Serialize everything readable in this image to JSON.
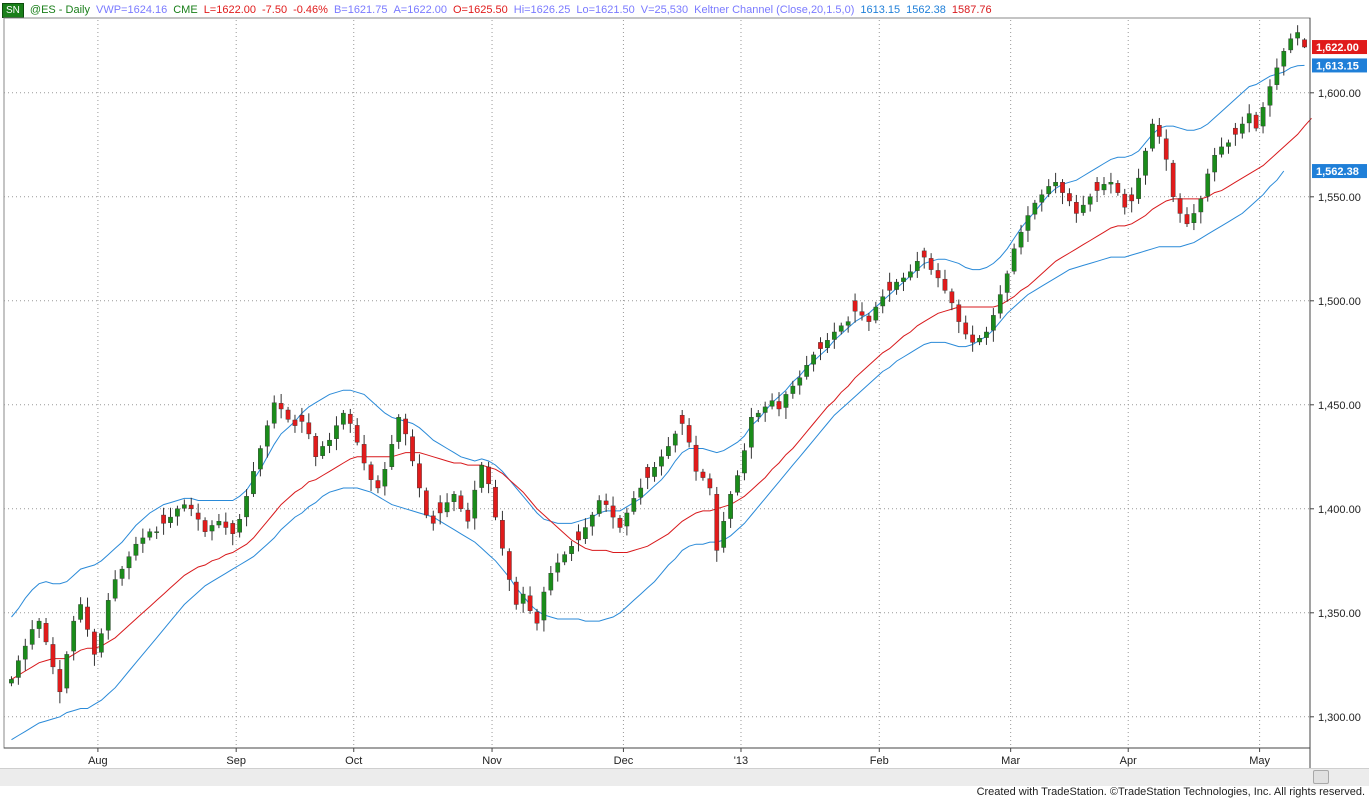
{
  "header": {
    "symbol_badge": "SN",
    "symbol": "@ES - Daily",
    "vwp": "VWP=1624.16",
    "exchange": "CME",
    "last": "L=1622.00",
    "change": "-7.50",
    "change_pct": "-0.46%",
    "bid": "B=1621.75",
    "ask": "A=1622.00",
    "open": "O=1625.50",
    "high": "Hi=1626.25",
    "low": "Lo=1621.50",
    "volume": "V=25,530",
    "indicator": "Keltner Channel (Close,20,1.5,0)",
    "ind_upper": "1613.15",
    "ind_lower": "1562.38",
    "ind_mid": "1587.76"
  },
  "footer": {
    "credit": "Created with TradeStation. ©TradeStation Technologies, Inc. All rights reserved."
  },
  "colors": {
    "up": "#1a8c1a",
    "down": "#e11b1b",
    "keltner_band": "#2a8ad8",
    "keltner_mid": "#d8191c",
    "grid": "#999999",
    "price_tag": "#e01b1b",
    "band_tag": "#1f7fd8"
  },
  "chart_data": {
    "type": "candlestick",
    "ylim": [
      1285,
      1635
    ],
    "yticks": [
      1300,
      1350,
      1400,
      1450,
      1500,
      1550,
      1600
    ],
    "ytick_labels": [
      "1,300.00",
      "1,350.00",
      "1,400.00",
      "1,450.00",
      "1,500.00",
      "1,550.00",
      "1,600.00"
    ],
    "xtick_labels": [
      {
        "label": "Aug",
        "i": 13
      },
      {
        "label": "Sep",
        "i": 33
      },
      {
        "label": "Oct",
        "i": 50
      },
      {
        "label": "Nov",
        "i": 70
      },
      {
        "label": "Dec",
        "i": 89
      },
      {
        "label": "'13",
        "i": 106
      },
      {
        "label": "Feb",
        "i": 126
      },
      {
        "label": "Mar",
        "i": 145
      },
      {
        "label": "Apr",
        "i": 162
      },
      {
        "label": "May",
        "i": 181
      }
    ],
    "price_tags": [
      {
        "label": "1,622.00",
        "value": 1622.0,
        "kind": "price"
      },
      {
        "label": "1,613.15",
        "value": 1613.15,
        "kind": "band"
      },
      {
        "label": "1,562.38",
        "value": 1562.38,
        "kind": "band"
      }
    ],
    "closes": [
      1318,
      1327,
      1334,
      1342,
      1346,
      1336,
      1324,
      1312,
      1330,
      1346,
      1354,
      1342,
      1330,
      1340,
      1356,
      1366,
      1371,
      1377,
      1383,
      1386,
      1389,
      1389,
      1393,
      1396,
      1400,
      1402,
      1400,
      1395,
      1389,
      1392,
      1394,
      1391,
      1388,
      1395,
      1406,
      1418,
      1429,
      1440,
      1451,
      1448,
      1443,
      1440,
      1442,
      1436,
      1425,
      1430,
      1433,
      1440,
      1446,
      1441,
      1432,
      1422,
      1414,
      1410,
      1419,
      1431,
      1444,
      1436,
      1423,
      1410,
      1397,
      1393,
      1398,
      1403,
      1407,
      1400,
      1394,
      1409,
      1421,
      1412,
      1396,
      1381,
      1366,
      1354,
      1359,
      1351,
      1345,
      1360,
      1369,
      1374,
      1378,
      1382,
      1385,
      1391,
      1397,
      1404,
      1402,
      1396,
      1391,
      1398,
      1405,
      1410,
      1415,
      1420,
      1425,
      1430,
      1436,
      1441,
      1432,
      1418,
      1415,
      1410,
      1380,
      1394,
      1407,
      1416,
      1428,
      1444,
      1446,
      1449,
      1452,
      1448,
      1455,
      1459,
      1463,
      1469,
      1474,
      1477,
      1481,
      1485,
      1488,
      1490,
      1495,
      1493,
      1490,
      1497,
      1502,
      1505,
      1509,
      1511,
      1514,
      1519,
      1521,
      1515,
      1511,
      1505,
      1499,
      1490,
      1484,
      1480,
      1482,
      1485,
      1493,
      1503,
      1513,
      1525,
      1533,
      1541,
      1547,
      1551,
      1555,
      1557,
      1552,
      1548,
      1542,
      1546,
      1550,
      1553,
      1556,
      1557,
      1552,
      1545,
      1548,
      1559,
      1572,
      1585,
      1579,
      1568,
      1550,
      1542,
      1537,
      1542,
      1549,
      1561,
      1570,
      1574,
      1576,
      1580,
      1585,
      1590,
      1583,
      1593,
      1603,
      1612,
      1620,
      1626,
      1629,
      1622
    ],
    "keltner_upper": [
      1348,
      1352,
      1357,
      1361,
      1364,
      1365,
      1364,
      1364,
      1365,
      1368,
      1371,
      1372,
      1373,
      1375,
      1378,
      1381,
      1384,
      1388,
      1392,
      1395,
      1398,
      1400,
      1402,
      1403,
      1404,
      1405,
      1405,
      1404,
      1404,
      1404,
      1404,
      1404,
      1404,
      1406,
      1409,
      1414,
      1419,
      1425,
      1431,
      1436,
      1439,
      1442,
      1446,
      1449,
      1451,
      1453,
      1455,
      1456,
      1457,
      1457,
      1456,
      1455,
      1452,
      1449,
      1446,
      1444,
      1443,
      1442,
      1441,
      1439,
      1436,
      1433,
      1431,
      1429,
      1427,
      1425,
      1424,
      1423,
      1424,
      1423,
      1421,
      1418,
      1414,
      1410,
      1406,
      1402,
      1398,
      1395,
      1394,
      1393,
      1393,
      1393,
      1394,
      1395,
      1396,
      1398,
      1399,
      1399,
      1399,
      1401,
      1403,
      1405,
      1408,
      1411,
      1414,
      1418,
      1423,
      1427,
      1429,
      1429,
      1429,
      1428,
      1427,
      1428,
      1430,
      1432,
      1435,
      1440,
      1443,
      1447,
      1451,
      1454,
      1457,
      1461,
      1464,
      1468,
      1471,
      1474,
      1477,
      1481,
      1484,
      1487,
      1490,
      1492,
      1494,
      1497,
      1500,
      1503,
      1506,
      1509,
      1512,
      1515,
      1518,
      1519,
      1520,
      1520,
      1519,
      1518,
      1516,
      1515,
      1515,
      1516,
      1518,
      1521,
      1525,
      1530,
      1535,
      1539,
      1543,
      1547,
      1551,
      1554,
      1556,
      1557,
      1558,
      1560,
      1562,
      1564,
      1566,
      1568,
      1569,
      1569,
      1570,
      1572,
      1576,
      1580,
      1583,
      1584,
      1584,
      1583,
      1582,
      1582,
      1583,
      1585,
      1588,
      1591,
      1594,
      1597,
      1600,
      1603,
      1604,
      1606,
      1608,
      1609,
      1610,
      1612,
      1613,
      1613.15
    ],
    "keltner_mid": [
      1318,
      1320,
      1322,
      1324,
      1326,
      1327,
      1328,
      1328,
      1328,
      1330,
      1332,
      1333,
      1333,
      1334,
      1336,
      1338,
      1341,
      1344,
      1347,
      1350,
      1353,
      1356,
      1359,
      1362,
      1365,
      1368,
      1370,
      1372,
      1373,
      1375,
      1376,
      1378,
      1379,
      1381,
      1383,
      1386,
      1390,
      1394,
      1398,
      1402,
      1405,
      1408,
      1410,
      1413,
      1414,
      1416,
      1418,
      1420,
      1422,
      1424,
      1425,
      1425,
      1425,
      1425,
      1425,
      1425,
      1426,
      1427,
      1427,
      1427,
      1426,
      1425,
      1424,
      1423,
      1422,
      1422,
      1421,
      1421,
      1421,
      1420,
      1419,
      1417,
      1414,
      1411,
      1408,
      1404,
      1400,
      1397,
      1394,
      1391,
      1388,
      1385,
      1383,
      1381,
      1380,
      1380,
      1380,
      1379,
      1379,
      1379,
      1380,
      1381,
      1382,
      1384,
      1386,
      1388,
      1391,
      1394,
      1396,
      1398,
      1399,
      1399,
      1400,
      1401,
      1402,
      1404,
      1406,
      1409,
      1412,
      1415,
      1419,
      1422,
      1426,
      1429,
      1433,
      1437,
      1441,
      1445,
      1449,
      1452,
      1456,
      1459,
      1463,
      1466,
      1469,
      1472,
      1475,
      1477,
      1480,
      1483,
      1485,
      1488,
      1490,
      1492,
      1494,
      1495,
      1496,
      1497,
      1497,
      1497,
      1497,
      1497,
      1497,
      1498,
      1500,
      1502,
      1505,
      1507,
      1510,
      1513,
      1516,
      1519,
      1521,
      1523,
      1525,
      1527,
      1529,
      1531,
      1533,
      1535,
      1536,
      1536,
      1537,
      1539,
      1541,
      1544,
      1546,
      1548,
      1549,
      1549,
      1549,
      1549,
      1549,
      1550,
      1552,
      1553,
      1555,
      1557,
      1559,
      1561,
      1563,
      1565,
      1568,
      1571,
      1574,
      1577,
      1580,
      1584,
      1587.76
    ],
    "keltner_lower": [
      1289,
      1291,
      1293,
      1295,
      1297,
      1298,
      1299,
      1300,
      1302,
      1303,
      1304,
      1304,
      1306,
      1308,
      1311,
      1314,
      1318,
      1322,
      1326,
      1330,
      1334,
      1338,
      1342,
      1346,
      1350,
      1354,
      1357,
      1360,
      1363,
      1365,
      1367,
      1369,
      1371,
      1373,
      1375,
      1377,
      1380,
      1383,
      1386,
      1390,
      1393,
      1396,
      1398,
      1401,
      1403,
      1406,
      1408,
      1409,
      1410,
      1410,
      1410,
      1409,
      1408,
      1406,
      1404,
      1402,
      1401,
      1400,
      1399,
      1398,
      1397,
      1396,
      1394,
      1392,
      1390,
      1388,
      1386,
      1384,
      1381,
      1378,
      1375,
      1371,
      1367,
      1362,
      1358,
      1354,
      1351,
      1349,
      1348,
      1347,
      1347,
      1347,
      1347,
      1346,
      1346,
      1346,
      1347,
      1348,
      1350,
      1353,
      1356,
      1359,
      1362,
      1365,
      1369,
      1373,
      1376,
      1380,
      1382,
      1383,
      1383,
      1384,
      1384,
      1385,
      1387,
      1390,
      1393,
      1397,
      1401,
      1405,
      1409,
      1413,
      1417,
      1421,
      1425,
      1429,
      1433,
      1437,
      1441,
      1445,
      1448,
      1451,
      1454,
      1457,
      1460,
      1463,
      1466,
      1468,
      1471,
      1473,
      1475,
      1477,
      1479,
      1480,
      1480,
      1480,
      1479,
      1478,
      1478,
      1479,
      1481,
      1483,
      1486,
      1490,
      1494,
      1497,
      1500,
      1503,
      1505,
      1507,
      1509,
      1511,
      1513,
      1515,
      1516,
      1517,
      1518,
      1519,
      1520,
      1521,
      1521,
      1521,
      1522,
      1523,
      1524,
      1525,
      1526,
      1526,
      1526,
      1526,
      1527,
      1528,
      1530,
      1532,
      1534,
      1536,
      1538,
      1540,
      1542,
      1545,
      1548,
      1551,
      1555,
      1558,
      1562.38
    ]
  }
}
